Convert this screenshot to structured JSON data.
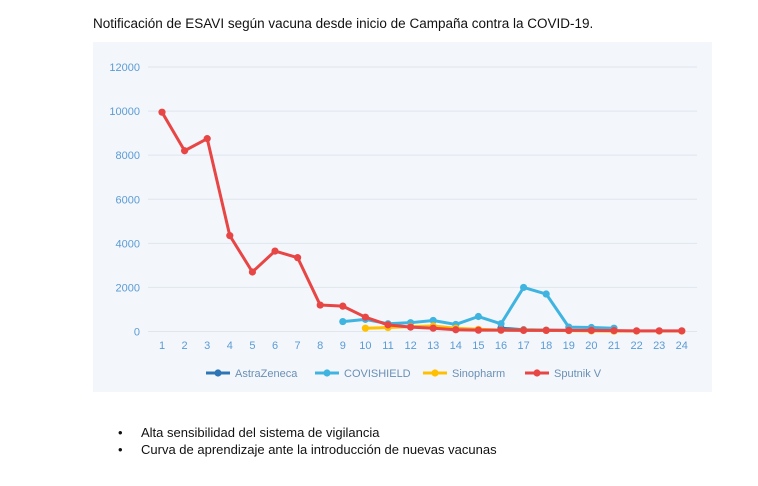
{
  "page": {
    "title": "Notificación de ESAVI según vacuna desde inicio de Campaña contra la COVID-19.",
    "bullets": [
      "Alta sensibilidad del sistema de vigilancia",
      "Curva de aprendizaje ante la introducción de nuevas vacunas"
    ]
  },
  "chart_data": {
    "type": "line",
    "title": "Notificación de ESAVI según vacuna desde inicio de Campaña contra la COVID-19.",
    "xlabel": "",
    "ylabel": "",
    "x": [
      1,
      2,
      3,
      4,
      5,
      6,
      7,
      8,
      9,
      10,
      11,
      12,
      13,
      14,
      15,
      16,
      17,
      18,
      19,
      20,
      21,
      22,
      23,
      24
    ],
    "xticks": [
      "1",
      "2",
      "3",
      "4",
      "5",
      "6",
      "7",
      "8",
      "9",
      "10",
      "11",
      "12",
      "13",
      "14",
      "15",
      "16",
      "17",
      "18",
      "19",
      "20",
      "21",
      "22",
      "23",
      "24"
    ],
    "ylim": [
      0,
      12000
    ],
    "yticks": [
      0,
      2000,
      4000,
      6000,
      8000,
      10000,
      12000
    ],
    "grid": true,
    "legend": "bottom",
    "series": [
      {
        "name": "AstraZeneca",
        "color": "#2e75b6",
        "values": [
          null,
          null,
          null,
          null,
          null,
          null,
          null,
          null,
          null,
          null,
          null,
          null,
          null,
          null,
          null,
          150,
          80,
          60,
          50,
          40,
          30,
          null,
          null,
          null
        ]
      },
      {
        "name": "COVISHIELD",
        "color": "#40b4e0",
        "values": [
          null,
          null,
          null,
          null,
          null,
          null,
          null,
          null,
          450,
          550,
          350,
          400,
          500,
          320,
          680,
          350,
          2000,
          1700,
          200,
          180,
          150,
          null,
          null,
          null
        ]
      },
      {
        "name": "Sinopharm",
        "color": "#ffc000",
        "values": [
          null,
          null,
          null,
          null,
          null,
          null,
          null,
          null,
          null,
          150,
          180,
          220,
          250,
          150,
          100,
          60,
          60,
          50,
          40,
          30,
          20,
          20,
          20,
          20
        ]
      },
      {
        "name": "Sputnik V",
        "color": "#e84545",
        "values": [
          9950,
          8200,
          8750,
          4350,
          2700,
          3650,
          3350,
          1200,
          1150,
          650,
          300,
          200,
          150,
          80,
          60,
          60,
          50,
          50,
          50,
          50,
          40,
          30,
          30,
          30
        ]
      }
    ]
  }
}
